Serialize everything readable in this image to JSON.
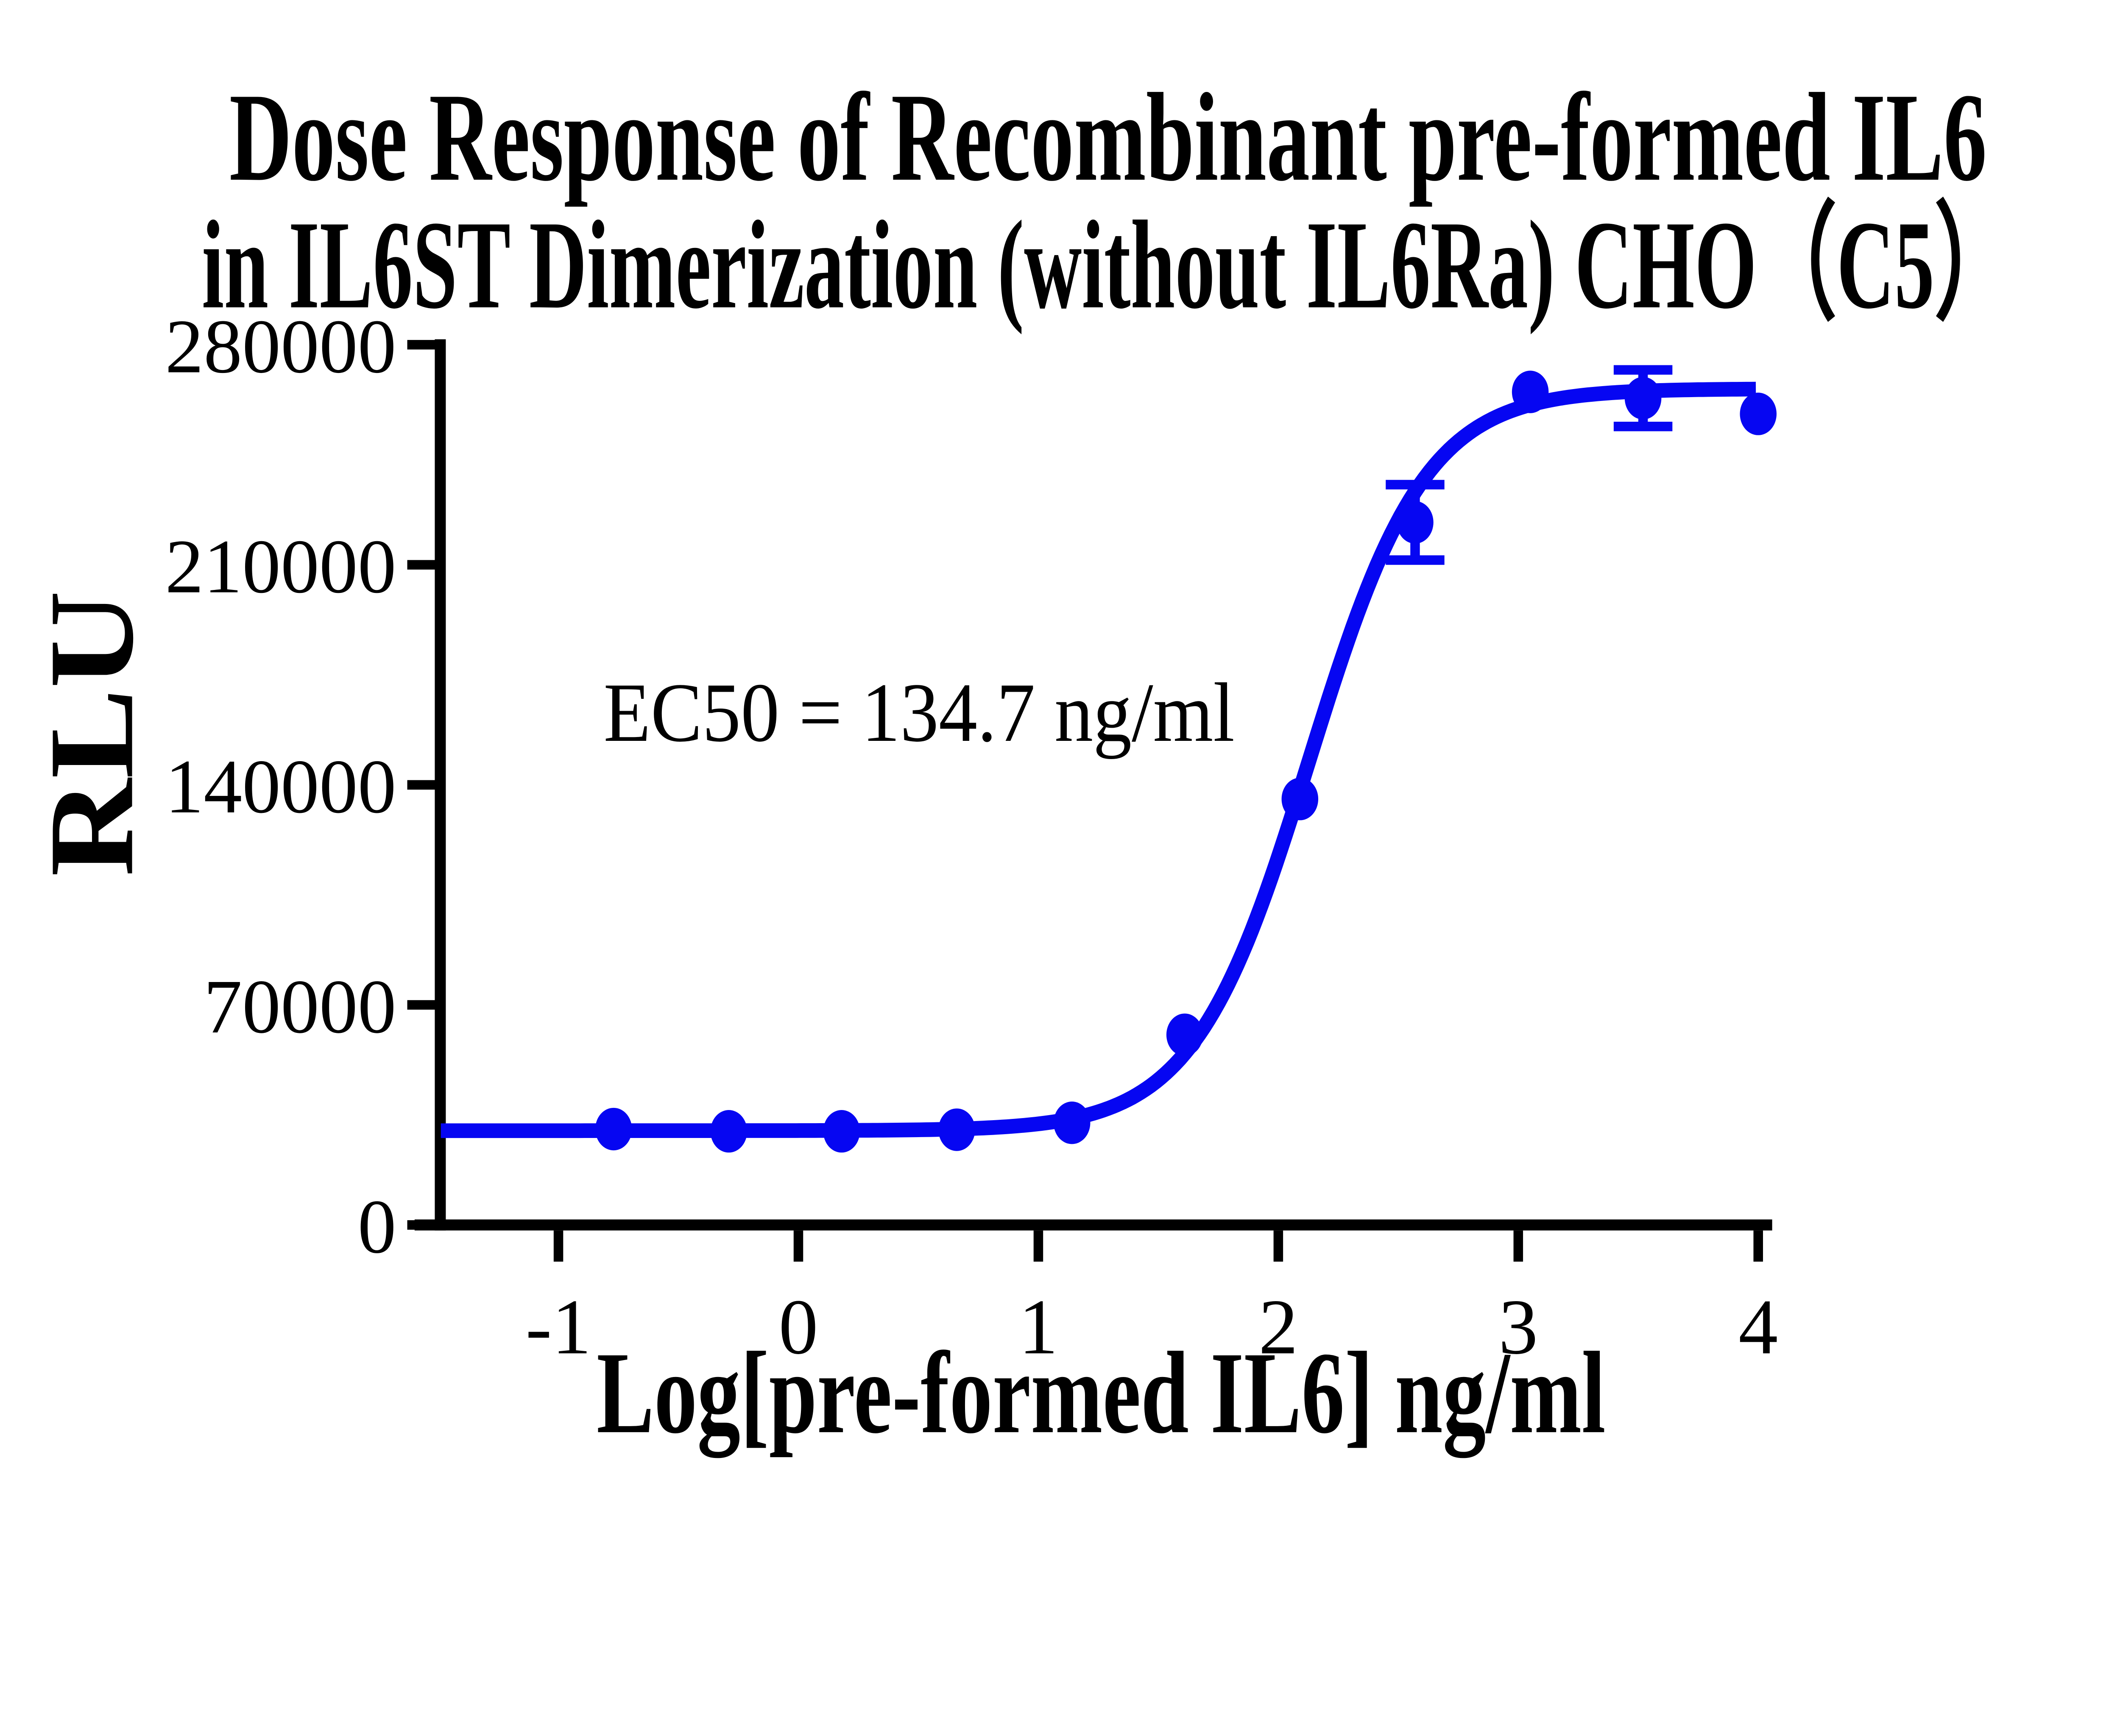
{
  "figure": {
    "title_line1": "Dose Response of Recombinant pre-formed IL6",
    "title_line2": "in IL6ST Dimerization (without IL6Ra) CHO（C5）",
    "annotation_text": "EC50 = 134.7 ng/ml",
    "y_axis_title": "RLU",
    "x_axis_title": "Log[pre-formed IL6] ng/ml"
  },
  "chart_data": {
    "type": "scatter",
    "title": "Dose Response of Recombinant pre-formed IL6 in IL6ST Dimerization (without IL6Ra) CHO（C5）",
    "xlabel": "Log[pre-formed IL6] ng/ml",
    "ylabel": "RLU",
    "xlim": [
      -1.5,
      4.05
    ],
    "ylim": [
      0,
      280000
    ],
    "x_ticks": [
      -1,
      0,
      1,
      2,
      3,
      4
    ],
    "y_ticks": [
      0,
      70000,
      140000,
      210000,
      280000
    ],
    "grid": false,
    "legend": "none",
    "annotation": {
      "text": "EC50 = 134.7 ng/ml",
      "ec50_ng_ml": 134.7
    },
    "series": [
      {
        "name": "pre-formed IL6",
        "color": "#0606f2",
        "marker": "circle",
        "points": [
          {
            "x": -0.77,
            "y": 30500,
            "err": 0
          },
          {
            "x": -0.29,
            "y": 29800,
            "err": 0
          },
          {
            "x": 0.18,
            "y": 29800,
            "err": 0
          },
          {
            "x": 0.66,
            "y": 30300,
            "err": 0
          },
          {
            "x": 1.14,
            "y": 32500,
            "err": 0
          },
          {
            "x": 1.61,
            "y": 60500,
            "err": 0
          },
          {
            "x": 2.09,
            "y": 135500,
            "err": 0
          },
          {
            "x": 2.57,
            "y": 223500,
            "err": 12000
          },
          {
            "x": 3.05,
            "y": 265000,
            "err": 0
          },
          {
            "x": 3.52,
            "y": 263000,
            "err": 9000
          },
          {
            "x": 4.0,
            "y": 258000,
            "err": 0
          }
        ]
      }
    ],
    "fit": {
      "model": "4PL sigmoid",
      "bottom": 30000,
      "top": 266000,
      "log_ec50": 2.1294,
      "hill_slope": 1.8,
      "x_start": -1.49,
      "x_end": 4.0
    }
  }
}
